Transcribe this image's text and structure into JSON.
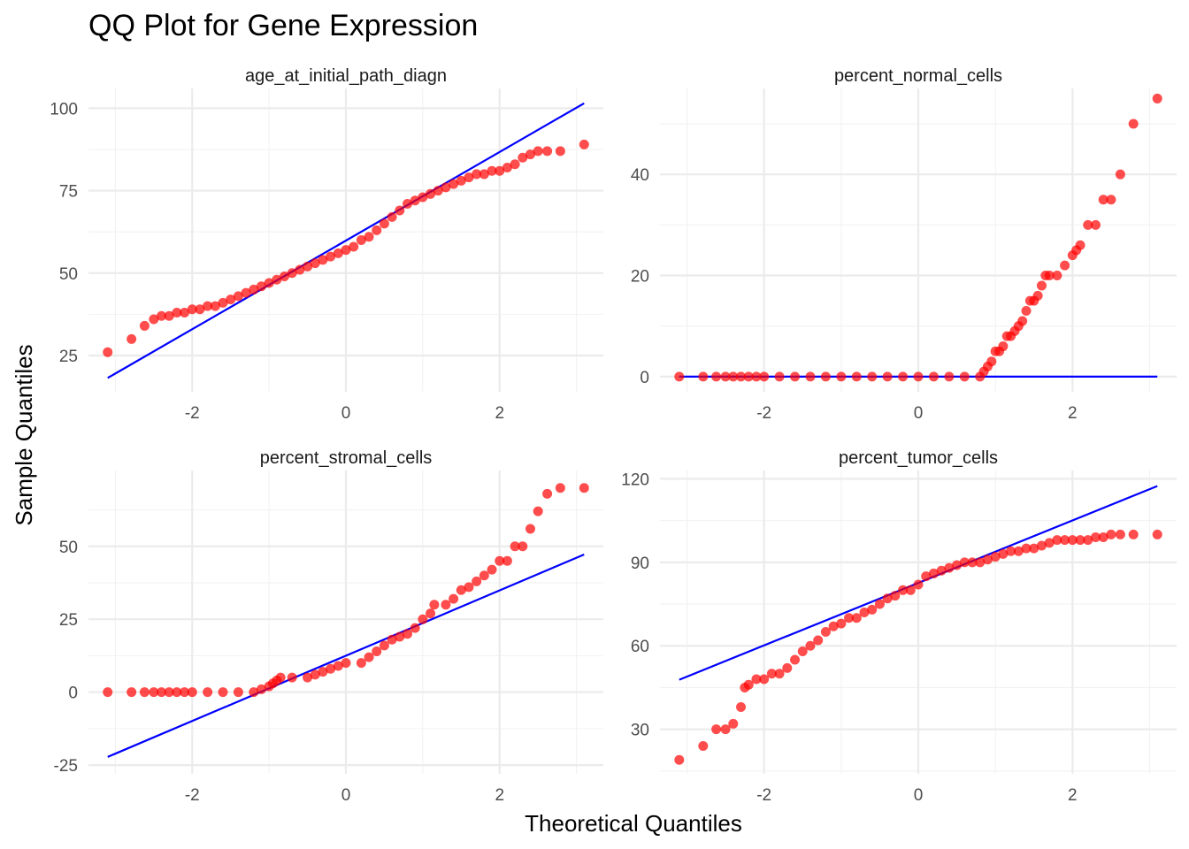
{
  "title": "QQ Plot for Gene Expression",
  "xlabel": "Theoretical Quantiles",
  "ylabel": "Sample Quantiles",
  "colors": {
    "points": "#ff0000",
    "line": "#0000ff",
    "grid": "#ebebeb"
  },
  "chart_data": [
    {
      "type": "scatter",
      "panel": "age_at_initial_path_diagn",
      "xlim": [
        -3.35,
        3.35
      ],
      "ylim": [
        14,
        106
      ],
      "x_ticks": [
        -2,
        0,
        2
      ],
      "y_ticks": [
        25,
        50,
        75,
        100
      ],
      "line": {
        "x": [
          -3.1,
          3.1
        ],
        "y": [
          18.2,
          101.5
        ]
      },
      "points": [
        [
          -3.1,
          26
        ],
        [
          -2.79,
          30
        ],
        [
          -2.62,
          34
        ],
        [
          -2.5,
          36
        ],
        [
          -2.4,
          37
        ],
        [
          -2.3,
          37
        ],
        [
          -2.2,
          38
        ],
        [
          -2.1,
          38
        ],
        [
          -2.0,
          39
        ],
        [
          -1.9,
          39
        ],
        [
          -1.8,
          40
        ],
        [
          -1.7,
          40
        ],
        [
          -1.6,
          41
        ],
        [
          -1.5,
          42
        ],
        [
          -1.4,
          43
        ],
        [
          -1.3,
          44
        ],
        [
          -1.2,
          45
        ],
        [
          -1.1,
          46
        ],
        [
          -1.0,
          47
        ],
        [
          -0.9,
          48
        ],
        [
          -0.8,
          49
        ],
        [
          -0.7,
          50
        ],
        [
          -0.6,
          51
        ],
        [
          -0.5,
          52
        ],
        [
          -0.4,
          53
        ],
        [
          -0.3,
          54
        ],
        [
          -0.2,
          55
        ],
        [
          -0.1,
          56
        ],
        [
          0.0,
          57
        ],
        [
          0.1,
          58
        ],
        [
          0.2,
          60
        ],
        [
          0.3,
          61
        ],
        [
          0.4,
          63
        ],
        [
          0.5,
          65
        ],
        [
          0.6,
          67
        ],
        [
          0.7,
          69
        ],
        [
          0.8,
          71
        ],
        [
          0.9,
          72
        ],
        [
          1.0,
          73
        ],
        [
          1.1,
          74
        ],
        [
          1.2,
          75
        ],
        [
          1.3,
          76
        ],
        [
          1.4,
          77
        ],
        [
          1.5,
          78
        ],
        [
          1.6,
          79
        ],
        [
          1.7,
          80
        ],
        [
          1.8,
          80
        ],
        [
          1.9,
          81
        ],
        [
          2.0,
          81
        ],
        [
          2.1,
          82
        ],
        [
          2.2,
          83
        ],
        [
          2.3,
          85
        ],
        [
          2.4,
          86
        ],
        [
          2.5,
          87
        ],
        [
          2.62,
          87
        ],
        [
          2.79,
          87
        ],
        [
          3.1,
          89
        ]
      ]
    },
    {
      "type": "scatter",
      "panel": "percent_normal_cells",
      "xlim": [
        -3.35,
        3.35
      ],
      "ylim": [
        -3,
        57
      ],
      "x_ticks": [
        -2,
        0,
        2
      ],
      "y_ticks": [
        0,
        20,
        40
      ],
      "line": {
        "x": [
          -3.1,
          3.1
        ],
        "y": [
          0,
          0
        ]
      },
      "points": [
        [
          -3.1,
          0
        ],
        [
          -2.79,
          0
        ],
        [
          -2.62,
          0
        ],
        [
          -2.5,
          0
        ],
        [
          -2.4,
          0
        ],
        [
          -2.3,
          0
        ],
        [
          -2.2,
          0
        ],
        [
          -2.1,
          0
        ],
        [
          -2.0,
          0
        ],
        [
          -1.8,
          0
        ],
        [
          -1.6,
          0
        ],
        [
          -1.4,
          0
        ],
        [
          -1.2,
          0
        ],
        [
          -1.0,
          0
        ],
        [
          -0.8,
          0
        ],
        [
          -0.6,
          0
        ],
        [
          -0.4,
          0
        ],
        [
          -0.2,
          0
        ],
        [
          0.0,
          0
        ],
        [
          0.2,
          0
        ],
        [
          0.4,
          0
        ],
        [
          0.6,
          0
        ],
        [
          0.8,
          0
        ],
        [
          0.85,
          1
        ],
        [
          0.9,
          2
        ],
        [
          0.95,
          3
        ],
        [
          1.0,
          5
        ],
        [
          1.05,
          5
        ],
        [
          1.1,
          6
        ],
        [
          1.15,
          8
        ],
        [
          1.2,
          8
        ],
        [
          1.25,
          9
        ],
        [
          1.3,
          10
        ],
        [
          1.35,
          11
        ],
        [
          1.4,
          13
        ],
        [
          1.45,
          15
        ],
        [
          1.5,
          15
        ],
        [
          1.55,
          16
        ],
        [
          1.6,
          18
        ],
        [
          1.65,
          20
        ],
        [
          1.7,
          20
        ],
        [
          1.8,
          20
        ],
        [
          1.9,
          22
        ],
        [
          2.0,
          24
        ],
        [
          2.05,
          25
        ],
        [
          2.1,
          26
        ],
        [
          2.2,
          30
        ],
        [
          2.3,
          30
        ],
        [
          2.4,
          35
        ],
        [
          2.5,
          35
        ],
        [
          2.62,
          40
        ],
        [
          2.79,
          50
        ],
        [
          3.1,
          55
        ]
      ]
    },
    {
      "type": "scatter",
      "panel": "percent_stromal_cells",
      "xlim": [
        -3.35,
        3.35
      ],
      "ylim": [
        -28,
        76
      ],
      "x_ticks": [
        -2,
        0,
        2
      ],
      "y_ticks": [
        -25,
        0,
        25,
        50
      ],
      "line": {
        "x": [
          -3.1,
          3.1
        ],
        "y": [
          -22.2,
          47.2
        ]
      },
      "points": [
        [
          -3.1,
          0
        ],
        [
          -2.79,
          0
        ],
        [
          -2.62,
          0
        ],
        [
          -2.5,
          0
        ],
        [
          -2.4,
          0
        ],
        [
          -2.3,
          0
        ],
        [
          -2.2,
          0
        ],
        [
          -2.1,
          0
        ],
        [
          -2.0,
          0
        ],
        [
          -1.8,
          0
        ],
        [
          -1.6,
          0
        ],
        [
          -1.4,
          0
        ],
        [
          -1.2,
          0
        ],
        [
          -1.1,
          1
        ],
        [
          -1.0,
          2
        ],
        [
          -0.95,
          3
        ],
        [
          -0.9,
          4
        ],
        [
          -0.85,
          5
        ],
        [
          -0.7,
          5
        ],
        [
          -0.5,
          5
        ],
        [
          -0.4,
          6
        ],
        [
          -0.3,
          7
        ],
        [
          -0.2,
          8
        ],
        [
          -0.1,
          9
        ],
        [
          0.0,
          10
        ],
        [
          0.2,
          10
        ],
        [
          0.3,
          12
        ],
        [
          0.4,
          14
        ],
        [
          0.5,
          16
        ],
        [
          0.6,
          18
        ],
        [
          0.7,
          19
        ],
        [
          0.8,
          20
        ],
        [
          0.9,
          22
        ],
        [
          1.0,
          25
        ],
        [
          1.1,
          27
        ],
        [
          1.15,
          30
        ],
        [
          1.3,
          30
        ],
        [
          1.4,
          32
        ],
        [
          1.5,
          35
        ],
        [
          1.6,
          36
        ],
        [
          1.7,
          38
        ],
        [
          1.8,
          40
        ],
        [
          1.9,
          42
        ],
        [
          2.0,
          45
        ],
        [
          2.1,
          45
        ],
        [
          2.2,
          50
        ],
        [
          2.3,
          50
        ],
        [
          2.4,
          56
        ],
        [
          2.5,
          62
        ],
        [
          2.62,
          68
        ],
        [
          2.79,
          70
        ],
        [
          3.1,
          70
        ]
      ]
    },
    {
      "type": "scatter",
      "panel": "percent_tumor_cells",
      "xlim": [
        -3.35,
        3.35
      ],
      "ylim": [
        14,
        123
      ],
      "x_ticks": [
        -2,
        0,
        2
      ],
      "y_ticks": [
        30,
        60,
        90,
        120
      ],
      "line": {
        "x": [
          -3.1,
          3.1
        ],
        "y": [
          47.8,
          117.4
        ]
      },
      "points": [
        [
          -3.1,
          19
        ],
        [
          -2.79,
          24
        ],
        [
          -2.62,
          30
        ],
        [
          -2.5,
          30
        ],
        [
          -2.4,
          32
        ],
        [
          -2.3,
          38
        ],
        [
          -2.25,
          45
        ],
        [
          -2.2,
          46
        ],
        [
          -2.1,
          48
        ],
        [
          -2.0,
          48
        ],
        [
          -1.9,
          50
        ],
        [
          -1.8,
          50
        ],
        [
          -1.7,
          52
        ],
        [
          -1.6,
          55
        ],
        [
          -1.5,
          58
        ],
        [
          -1.4,
          60
        ],
        [
          -1.3,
          62
        ],
        [
          -1.2,
          65
        ],
        [
          -1.1,
          67
        ],
        [
          -1.0,
          68
        ],
        [
          -0.9,
          70
        ],
        [
          -0.8,
          70
        ],
        [
          -0.7,
          72
        ],
        [
          -0.6,
          73
        ],
        [
          -0.5,
          75
        ],
        [
          -0.4,
          77
        ],
        [
          -0.3,
          78
        ],
        [
          -0.2,
          80
        ],
        [
          -0.1,
          80
        ],
        [
          0.0,
          82
        ],
        [
          0.1,
          85
        ],
        [
          0.2,
          86
        ],
        [
          0.3,
          87
        ],
        [
          0.4,
          88
        ],
        [
          0.5,
          89
        ],
        [
          0.6,
          90
        ],
        [
          0.7,
          90
        ],
        [
          0.8,
          90
        ],
        [
          0.9,
          91
        ],
        [
          1.0,
          92
        ],
        [
          1.1,
          93
        ],
        [
          1.2,
          94
        ],
        [
          1.3,
          94
        ],
        [
          1.4,
          95
        ],
        [
          1.5,
          95
        ],
        [
          1.6,
          96
        ],
        [
          1.7,
          97
        ],
        [
          1.8,
          98
        ],
        [
          1.9,
          98
        ],
        [
          2.0,
          98
        ],
        [
          2.1,
          98
        ],
        [
          2.2,
          98
        ],
        [
          2.3,
          99
        ],
        [
          2.4,
          99
        ],
        [
          2.5,
          100
        ],
        [
          2.62,
          100
        ],
        [
          2.79,
          100
        ],
        [
          3.1,
          100
        ]
      ]
    }
  ]
}
